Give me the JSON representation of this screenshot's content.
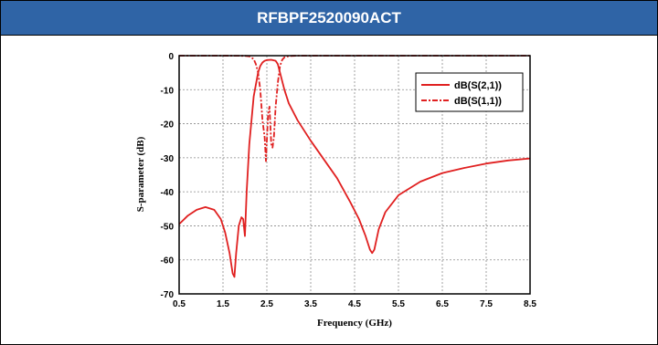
{
  "header": {
    "title": "RFBPF2520090ACT"
  },
  "chart_data": {
    "type": "line",
    "title": "",
    "xlabel": "Frequency (GHz)",
    "ylabel": "S-parameter (dB)",
    "xlim": [
      0.5,
      8.5
    ],
    "ylim": [
      -70,
      0
    ],
    "xticks": [
      0.5,
      1.5,
      2.5,
      3.5,
      4.5,
      5.5,
      6.5,
      7.5,
      8.5
    ],
    "yticks": [
      0,
      -10,
      -20,
      -30,
      -40,
      -50,
      -60,
      -70
    ],
    "xtick_labels": [
      "0.5",
      "1.5",
      "2.5",
      "3.5",
      "4.5",
      "5.5",
      "6.5",
      "7.5",
      "8.5"
    ],
    "ytick_labels": [
      "0",
      "-10",
      "-20",
      "-30",
      "-40",
      "-50",
      "-60",
      "-70"
    ],
    "grid": true,
    "legend_position": "top-right",
    "series": [
      {
        "name": "dB(S(2,1))",
        "color": "#e02020",
        "style": "solid",
        "x": [
          0.5,
          0.7,
          0.9,
          1.1,
          1.3,
          1.45,
          1.55,
          1.65,
          1.72,
          1.76,
          1.8,
          1.86,
          1.92,
          1.96,
          2.0,
          2.04,
          2.1,
          2.2,
          2.3,
          2.35,
          2.4,
          2.45,
          2.5,
          2.6,
          2.7,
          2.75,
          2.8,
          2.9,
          3.0,
          3.2,
          3.5,
          3.8,
          4.1,
          4.4,
          4.6,
          4.75,
          4.85,
          4.9,
          4.95,
          5.05,
          5.2,
          5.5,
          6.0,
          6.5,
          7.0,
          7.5,
          8.0,
          8.5
        ],
        "y": [
          -49.5,
          -47,
          -45.3,
          -44.5,
          -45.3,
          -48,
          -52,
          -58,
          -64,
          -65,
          -58,
          -50,
          -47.5,
          -48,
          -53,
          -40,
          -26,
          -12,
          -5,
          -3,
          -2,
          -1.5,
          -1.3,
          -1.2,
          -1.5,
          -2.5,
          -5,
          -10,
          -14,
          -19,
          -25,
          -30.5,
          -36,
          -43,
          -48,
          -53,
          -57,
          -58,
          -57,
          -51,
          -46,
          -41,
          -37,
          -34.5,
          -33,
          -31.7,
          -30.8,
          -30.2
        ]
      },
      {
        "name": "dB(S(1,1))",
        "color": "#e02020",
        "style": "dash-dot",
        "x": [
          0.5,
          1.5,
          2.0,
          2.1,
          2.2,
          2.25,
          2.3,
          2.35,
          2.4,
          2.45,
          2.48,
          2.5,
          2.53,
          2.56,
          2.6,
          2.63,
          2.66,
          2.7,
          2.75,
          2.8,
          2.85,
          2.9,
          3.0,
          3.2,
          4.0,
          6.0,
          8.5
        ],
        "y": [
          0,
          0,
          -0.05,
          -0.2,
          -1,
          -2.5,
          -5,
          -10,
          -19,
          -24,
          -31,
          -25,
          -17,
          -15,
          -26,
          -27,
          -24,
          -15,
          -8,
          -3,
          -1.2,
          -0.5,
          -0.1,
          0,
          0,
          0,
          0
        ]
      }
    ]
  }
}
